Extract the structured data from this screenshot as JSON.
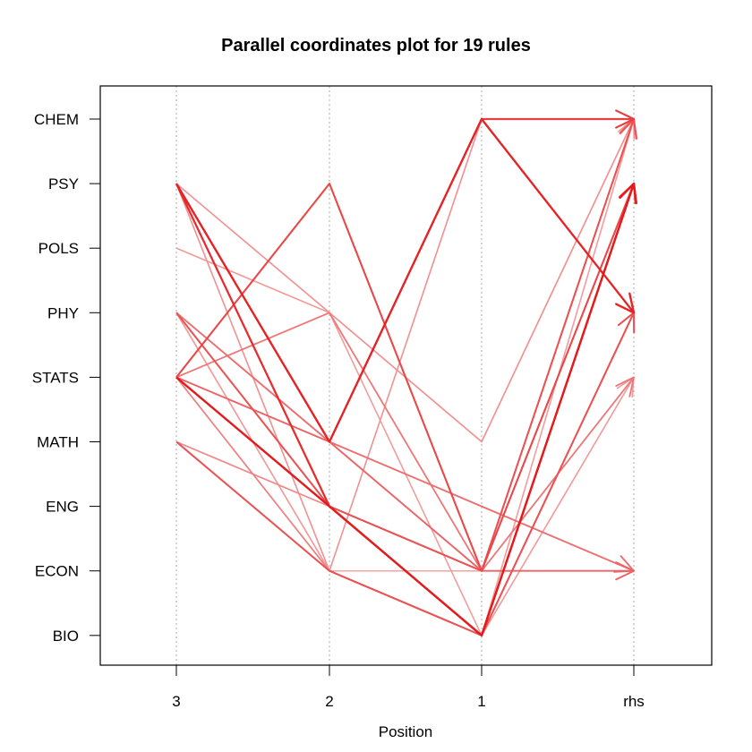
{
  "chart_data": {
    "type": "line",
    "title": "Parallel coordinates plot for 19 rules",
    "xlabel": "Position",
    "ylabel": "",
    "positions": [
      "3",
      "2",
      "1",
      "rhs"
    ],
    "items": [
      "CHEM",
      "PSY",
      "POLS",
      "PHY",
      "STATS",
      "MATH",
      "ENG",
      "ECON",
      "BIO"
    ],
    "grid": "vertical dotted lines at each position",
    "line_color": "#e41a1c",
    "rules": [
      {
        "path": [
          "PSY",
          "MATH",
          "CHEM",
          "PHY"
        ],
        "strength": 0.95
      },
      {
        "path": [
          "PSY",
          "ENG",
          "BIO",
          "PSY"
        ],
        "strength": 0.9
      },
      {
        "path": [
          "STATS",
          "ENG",
          "BIO",
          "PSY"
        ],
        "strength": 1.0
      },
      {
        "path": [
          "STATS",
          "PSY",
          "ECON",
          "PSY"
        ],
        "strength": 0.75
      },
      {
        "path": [
          "STATS",
          "MATH",
          "ECON",
          "ECON"
        ],
        "strength": 0.6
      },
      {
        "path": [
          "MATH",
          "ECON",
          "BIO",
          "PHY"
        ],
        "strength": 0.7
      },
      {
        "path": [
          "PSY",
          "MATH",
          "CHEM",
          "CHEM"
        ],
        "strength": 0.8
      },
      {
        "path": [
          "PHY",
          "ENG",
          "ECON",
          "CHEM"
        ],
        "strength": 0.7
      },
      {
        "path": [
          "PSY",
          "PHY",
          "MATH",
          "CHEM"
        ],
        "strength": 0.35
      },
      {
        "path": [
          "POLS",
          "PHY",
          "BIO",
          "CHEM"
        ],
        "strength": 0.3
      },
      {
        "path": [
          "PHY",
          "MATH",
          "ENG",
          "ECON"
        ],
        "strength": 0.55
      },
      {
        "path": [
          "STATS",
          "PHY",
          "ECON",
          "STATS"
        ],
        "strength": 0.5
      },
      {
        "path": [
          "MATH",
          "ENG",
          "ECON",
          "CHEM"
        ],
        "strength": 0.4
      },
      {
        "path": [
          "STATS",
          "ECON",
          "BIO",
          "PHY"
        ],
        "strength": 0.45
      },
      {
        "path": [
          "PSY",
          "ECON",
          "CHEM",
          "CHEM"
        ],
        "strength": 0.35
      },
      {
        "path": [
          "PHY",
          "ECON",
          "BIO",
          "STATS"
        ],
        "strength": 0.3
      },
      {
        "path": [
          "POLS",
          "PHY",
          "MATH",
          "CHEM"
        ],
        "strength": 0.2
      },
      {
        "path": [
          "MATH",
          "ENG",
          "BIO",
          "STATS"
        ],
        "strength": 0.15
      },
      {
        "path": [
          "PHY",
          "ECON",
          "ECON",
          "CHEM"
        ],
        "strength": 0.25
      }
    ]
  }
}
